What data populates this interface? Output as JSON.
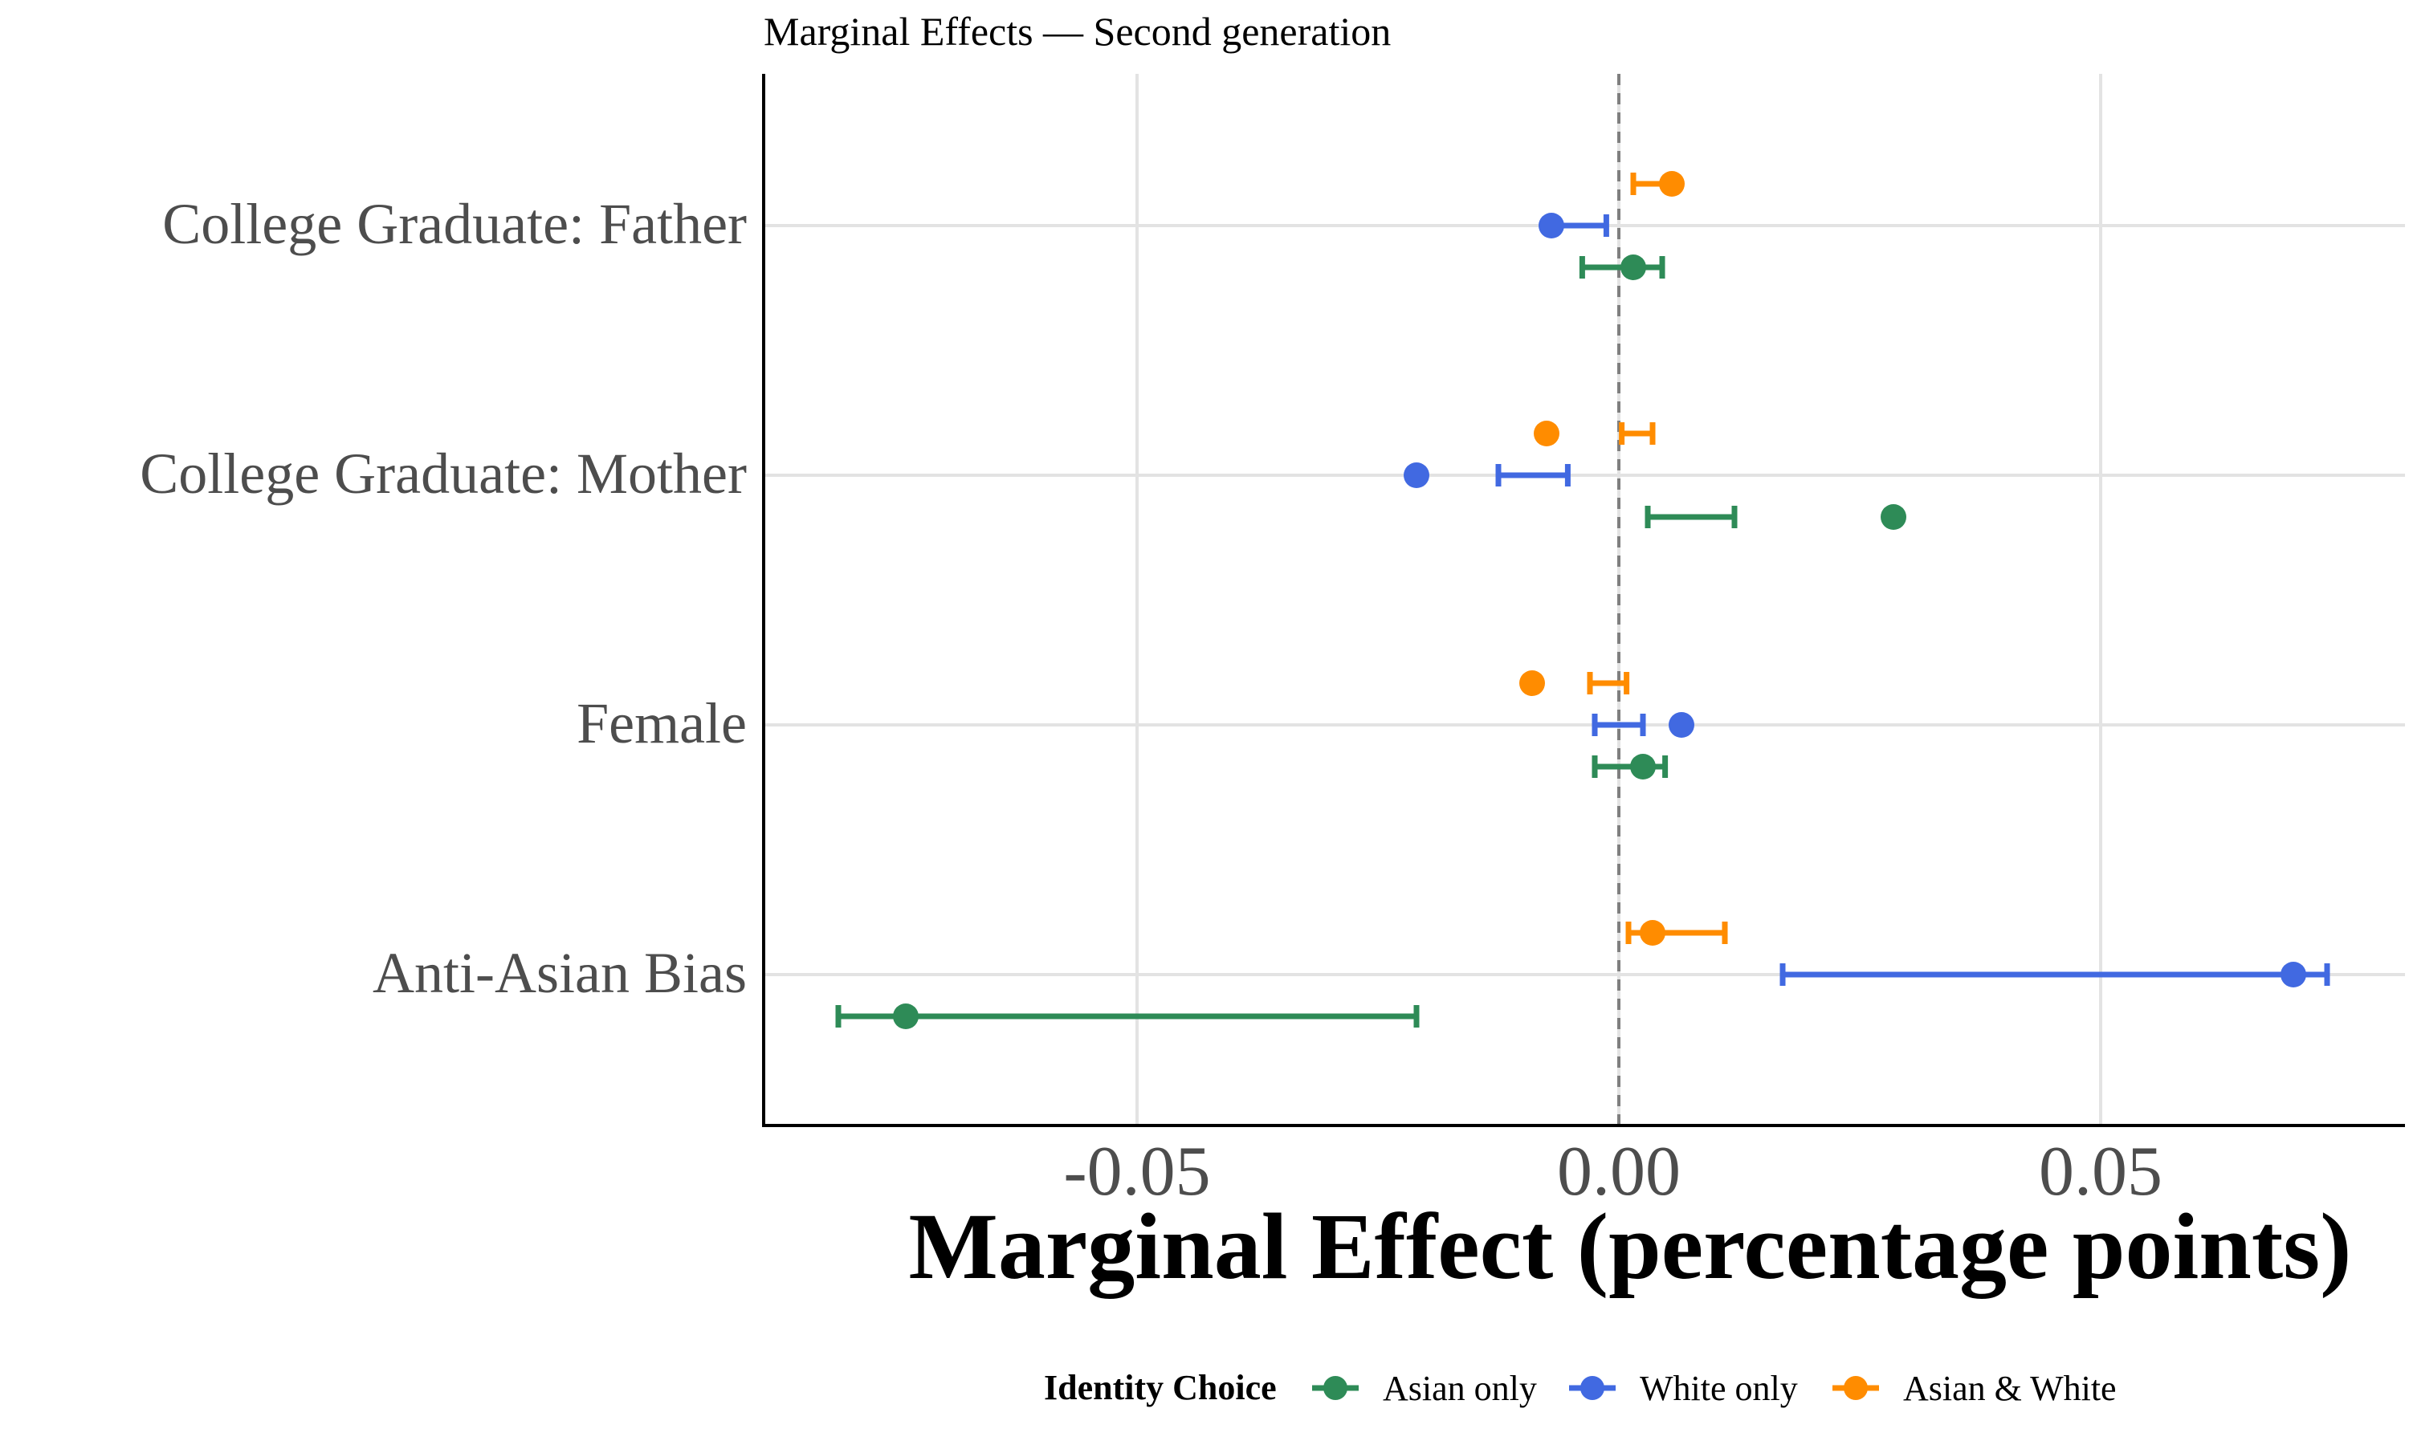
{
  "chart_data": {
    "type": "scatter",
    "title": "Marginal Effects — Second generation",
    "xlabel": "Marginal Effect (percentage points)",
    "ylabel": "",
    "xlim": [
      -0.089,
      0.081
    ],
    "xticks": [
      -0.05,
      0.0,
      0.05
    ],
    "xtick_labels": [
      "-0.05",
      "0.00",
      "0.05"
    ],
    "categories": [
      "College Graduate: Father",
      "College Graduate: Mother",
      "Female",
      "Anti-Asian Bias"
    ],
    "reference_line_x": 0,
    "grid": true,
    "legend": {
      "title": "Identity Choice",
      "position": "bottom",
      "entries": [
        "Asian only",
        "White only",
        "Asian & White"
      ]
    },
    "series": [
      {
        "name": "Asian & White",
        "color": "#FF8C00",
        "offset": "above",
        "points": [
          {
            "category": "College Graduate: Father",
            "estimate": 0.0055,
            "ci_low": 0.0015,
            "ci_high": 0.0058
          },
          {
            "category": "College Graduate: Mother",
            "estimate": -0.0075,
            "ci_low": 0.0003,
            "ci_high": 0.0035
          },
          {
            "category": "Female",
            "estimate": -0.009,
            "ci_low": -0.003,
            "ci_high": 0.0008
          },
          {
            "category": "Anti-Asian Bias",
            "estimate": 0.0035,
            "ci_low": 0.001,
            "ci_high": 0.011
          }
        ]
      },
      {
        "name": "White only",
        "color": "#4169E1",
        "offset": "center",
        "points": [
          {
            "category": "College Graduate: Father",
            "estimate": -0.007,
            "ci_low": -0.007,
            "ci_high": -0.0013
          },
          {
            "category": "College Graduate: Mother",
            "estimate": -0.021,
            "ci_low": -0.0125,
            "ci_high": -0.0053
          },
          {
            "category": "Female",
            "estimate": 0.0065,
            "ci_low": -0.0025,
            "ci_high": 0.0025
          },
          {
            "category": "Anti-Asian Bias",
            "estimate": 0.07,
            "ci_low": 0.017,
            "ci_high": 0.0735
          }
        ]
      },
      {
        "name": "Asian only",
        "color": "#2E8B57",
        "offset": "below",
        "points": [
          {
            "category": "College Graduate: Father",
            "estimate": 0.0015,
            "ci_low": -0.0038,
            "ci_high": 0.0045
          },
          {
            "category": "College Graduate: Mother",
            "estimate": 0.0285,
            "ci_low": 0.003,
            "ci_high": 0.012
          },
          {
            "category": "Female",
            "estimate": 0.0025,
            "ci_low": -0.0025,
            "ci_high": 0.0048
          },
          {
            "category": "Anti-Asian Bias",
            "estimate": -0.074,
            "ci_low": -0.081,
            "ci_high": -0.021
          }
        ]
      }
    ]
  }
}
